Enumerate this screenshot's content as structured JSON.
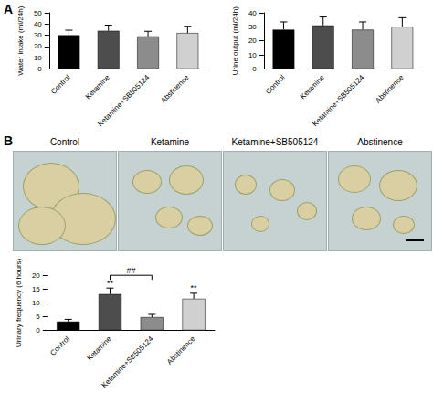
{
  "panel_labels": [
    "A",
    "B"
  ],
  "photo_titles": [
    "Control",
    "Ketamine",
    "Ketamine+SB505124",
    "Abstinence"
  ],
  "chart_data": [
    {
      "type": "bar",
      "ylabel": "Water intake (ml/24h)",
      "categories": [
        "Control",
        "Ketamine",
        "Ketamine+SB505124",
        "Abstinence"
      ],
      "values": [
        30,
        34,
        29,
        32
      ],
      "errors": [
        4.5,
        5,
        4.5,
        6
      ],
      "colors": [
        "#000000",
        "#4d4d4d",
        "#8c8c8c",
        "#d0d0d0"
      ],
      "ylim": [
        0,
        50
      ],
      "yticks": [
        0,
        10,
        20,
        30,
        40,
        50
      ],
      "grid": false
    },
    {
      "type": "bar",
      "ylabel": "Urine output (ml/24h)",
      "categories": [
        "Control",
        "Ketamine",
        "Ketamine+SB505124",
        "Abstinence"
      ],
      "values": [
        28,
        31,
        28,
        30
      ],
      "errors": [
        5.5,
        6,
        5.5,
        6.5
      ],
      "colors": [
        "#000000",
        "#4d4d4d",
        "#8c8c8c",
        "#d0d0d0"
      ],
      "ylim": [
        0,
        40
      ],
      "yticks": [
        0,
        10,
        20,
        30,
        40
      ],
      "grid": false
    },
    {
      "type": "bar",
      "ylabel": "Urinary frequency (6 hours)",
      "categories": [
        "Control",
        "Ketamine",
        "Ketamine+SB505124",
        "Abstinence"
      ],
      "values": [
        3.2,
        13.2,
        4.8,
        11.5
      ],
      "errors": [
        0.8,
        2.2,
        1,
        2
      ],
      "colors": [
        "#000000",
        "#4d4d4d",
        "#8c8c8c",
        "#d0d0d0"
      ],
      "ylim": [
        0,
        20
      ],
      "yticks": [
        0,
        5,
        10,
        15,
        20
      ],
      "grid": false,
      "annotations": [
        {
          "text": "**",
          "categories": [
            "Ketamine"
          ]
        },
        {
          "text": "**",
          "categories": [
            "Abstinence"
          ]
        },
        {
          "text": "##",
          "categories": [
            "Ketamine",
            "Ketamine+SB505124"
          ]
        }
      ]
    }
  ]
}
